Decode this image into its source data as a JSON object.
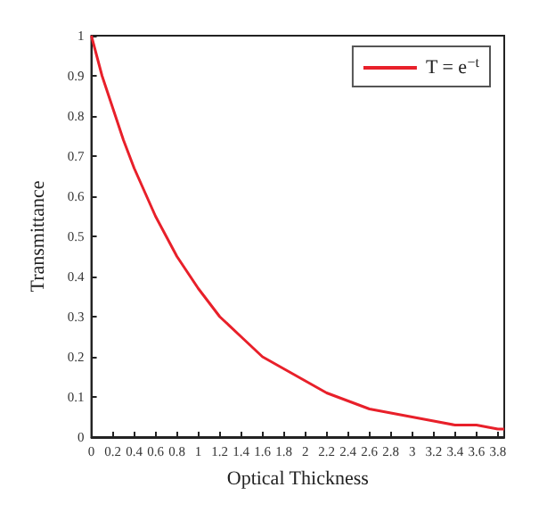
{
  "chart_data": {
    "type": "line",
    "xlabel": "Optical Thickness",
    "ylabel": "Transmittance",
    "x": [
      0,
      0.1,
      0.2,
      0.3,
      0.4,
      0.5,
      0.6,
      0.7,
      0.8,
      0.9,
      1,
      1.2,
      1.4,
      1.6,
      1.8,
      2,
      2.2,
      2.4,
      2.6,
      2.8,
      3,
      3.2,
      3.4,
      3.6,
      3.8,
      3.86
    ],
    "series": [
      {
        "name": "T = e$^{−t}$",
        "color": "#e8202a",
        "values": [
          1,
          0.9,
          0.82,
          0.74,
          0.67,
          0.61,
          0.55,
          0.5,
          0.45,
          0.41,
          0.37,
          0.3,
          0.25,
          0.2,
          0.17,
          0.14,
          0.11,
          0.09,
          0.07,
          0.06,
          0.05,
          0.04,
          0.03,
          0.03,
          0.02,
          0.02
        ]
      }
    ],
    "xlim": [
      0,
      3.86
    ],
    "xticks": [
      0,
      0.2,
      0.4,
      0.6,
      0.8,
      1,
      1.2,
      1.4,
      1.6,
      1.8,
      2,
      2.2,
      2.4,
      2.6,
      2.8,
      3,
      3.2,
      3.4,
      3.6,
      3.8
    ],
    "ylim": [
      0,
      1
    ],
    "yticks": [
      0,
      0.1,
      0.2,
      0.3,
      0.4,
      0.5,
      0.6,
      0.7,
      0.8,
      0.9,
      1
    ],
    "legend": "top right",
    "grid": false,
    "marker": "none",
    "line_style": "solid"
  }
}
